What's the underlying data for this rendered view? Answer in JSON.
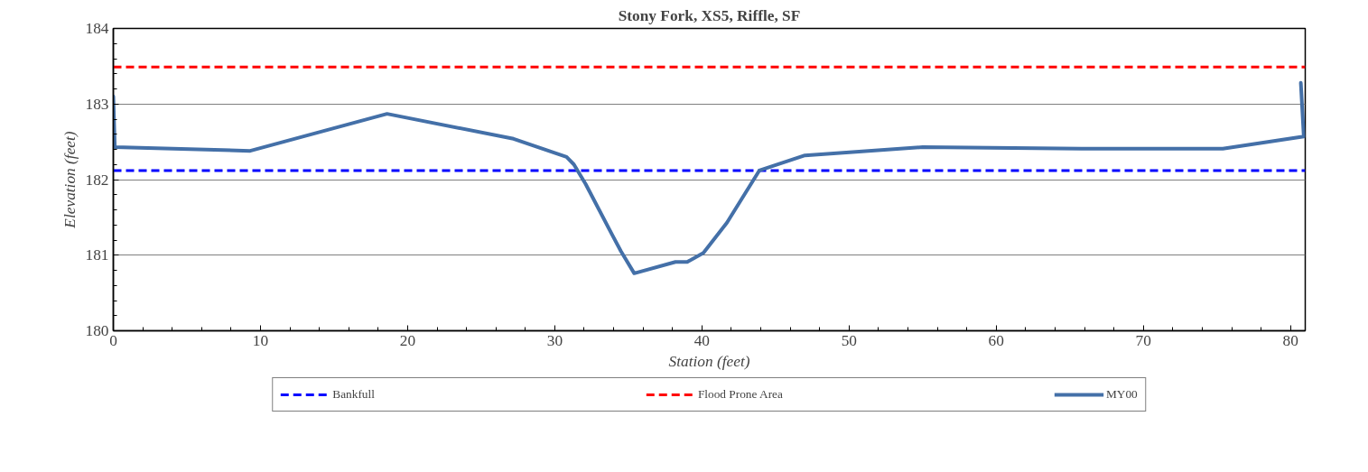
{
  "chart_data": {
    "type": "line",
    "title": "Stony Fork, XS5, Riffle, SF",
    "xlabel": "Station (feet)",
    "ylabel": "Elevation (feet)",
    "xlim": [
      0,
      81
    ],
    "xticks": [
      0,
      10,
      20,
      30,
      40,
      50,
      60,
      70,
      80
    ],
    "ylim": [
      180,
      184
    ],
    "yticks": [
      180,
      181,
      182,
      183,
      184
    ],
    "grid": "y",
    "legend": "bottom",
    "series": [
      {
        "name": "Bankfull",
        "color": "#0000ff",
        "line_style": "dashed",
        "x": [
          0,
          81
        ],
        "values": [
          182.12,
          182.12
        ]
      },
      {
        "name": "Flood Prone Area",
        "color": "#ff0000",
        "line_style": "dashed",
        "x": [
          0,
          81
        ],
        "values": [
          183.49,
          183.49
        ]
      },
      {
        "name": "MY00",
        "color": "#4470a8",
        "line_style": "solid",
        "x": [
          0,
          0.1,
          9.3,
          18.6,
          27.2,
          30.8,
          31.3,
          32.1,
          33.9,
          34.5,
          35.4,
          38.2,
          39.0,
          40.1,
          41.7,
          43.9,
          47.0,
          55.0,
          65.8,
          75.4,
          80.9,
          80.7
        ],
        "values": [
          183.1,
          182.43,
          182.38,
          182.87,
          182.54,
          182.3,
          182.2,
          181.94,
          181.27,
          181.05,
          180.76,
          180.91,
          180.91,
          181.03,
          181.43,
          182.12,
          182.32,
          182.43,
          182.41,
          182.41,
          182.57,
          183.28
        ]
      }
    ]
  }
}
